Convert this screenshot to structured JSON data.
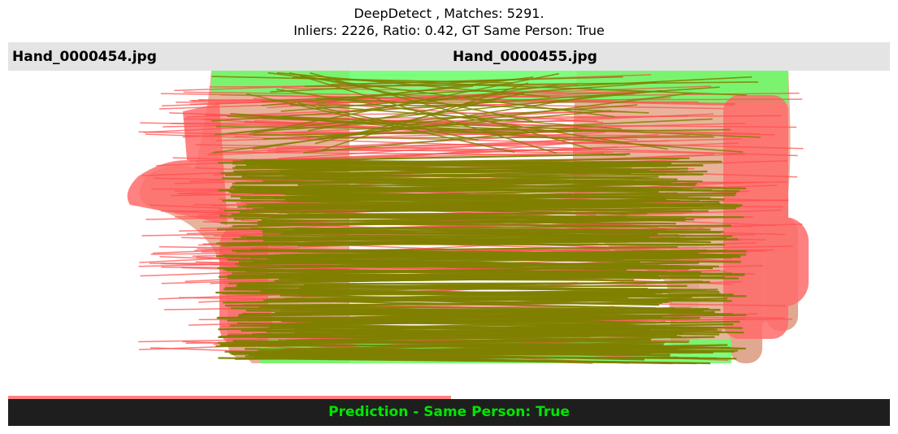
{
  "title": {
    "line1": "DeepDetect , Matches: 5291.",
    "line2": "Inliers: 2226, Ratio: 0.42, GT Same Person: True"
  },
  "images": {
    "left_label": "Hand_0000454.jpg",
    "right_label": "Hand_0000455.jpg"
  },
  "footer": {
    "prediction": "Prediction - Same Person: True"
  },
  "colors": {
    "inlier_line": "#808000",
    "outlier_line": "#ff5050",
    "inlier_blob": "#66ff66",
    "outlier_blob": "#ff7070",
    "skin": "#e8b39b",
    "prediction_text": "#00e600",
    "footer_bg": "#1e1e1e",
    "header_bg": "#e4e4e4"
  }
}
